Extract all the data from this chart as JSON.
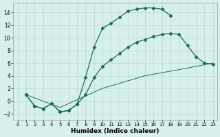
{
  "xlabel": "Humidex (Indice chaleur)",
  "bg_color": "#d8f0ec",
  "line_color": "#1a6b5a",
  "grid_color": "#b8d8d4",
  "xlim": [
    -0.5,
    23.5
  ],
  "ylim": [
    -3.0,
    15.5
  ],
  "yticks": [
    -2,
    0,
    2,
    4,
    6,
    8,
    10,
    12,
    14
  ],
  "xticks": [
    0,
    1,
    2,
    3,
    4,
    5,
    6,
    7,
    8,
    9,
    10,
    11,
    12,
    13,
    14,
    15,
    16,
    17,
    18,
    19,
    20,
    21,
    22,
    23
  ],
  "line1_x": [
    1,
    2,
    3,
    4,
    5,
    6,
    7,
    8,
    9,
    10,
    11,
    12,
    13,
    14,
    15,
    16,
    17,
    18
  ],
  "line1_y": [
    1,
    -0.8,
    -1.2,
    -0.4,
    -1.7,
    -1.5,
    -0.5,
    3.7,
    8.5,
    11.5,
    12.3,
    13.2,
    14.2,
    14.5,
    14.7,
    14.7,
    14.5,
    13.5
  ],
  "line2_x": [
    1,
    2,
    3,
    4,
    5,
    6,
    7,
    8,
    9,
    10,
    11,
    12,
    13,
    14,
    15,
    16,
    17,
    18,
    19,
    20,
    21,
    22,
    23
  ],
  "line2_y": [
    1,
    -0.8,
    -1.2,
    -0.4,
    -1.7,
    -1.5,
    -0.5,
    1.0,
    3.7,
    5.5,
    6.5,
    7.5,
    8.5,
    9.3,
    9.7,
    10.2,
    10.5,
    10.7,
    10.5,
    8.8,
    7.0,
    6.0,
    5.8
  ],
  "line3_x": [
    1,
    5,
    10,
    15,
    20,
    23
  ],
  "line3_y": [
    1.0,
    -1.0,
    2.0,
    4.0,
    5.2,
    6.0
  ]
}
